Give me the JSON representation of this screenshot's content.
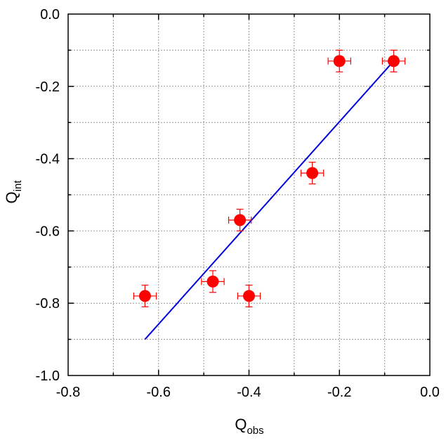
{
  "chart_data": {
    "type": "scatter",
    "xlabel": {
      "main": "Q",
      "sub": "obs"
    },
    "ylabel": {
      "main": "Q",
      "sub": "int"
    },
    "xlim": [
      -0.8,
      0.0
    ],
    "ylim": [
      -1.0,
      0.0
    ],
    "xticks": [
      "-0.8",
      "-0.6",
      "-0.4",
      "-0.2",
      "0.0"
    ],
    "yticks": [
      "0.0",
      "-0.2",
      "-0.4",
      "-0.6",
      "-0.8",
      "-1.0"
    ],
    "xtick_values": [
      -0.8,
      -0.6,
      -0.4,
      -0.2,
      0.0
    ],
    "ytick_values": [
      0.0,
      -0.2,
      -0.4,
      -0.6,
      -0.8,
      -1.0
    ],
    "grid": true,
    "points": [
      {
        "x": -0.63,
        "y": -0.78,
        "xerr": 0.025,
        "yerr": 0.03
      },
      {
        "x": -0.48,
        "y": -0.74,
        "xerr": 0.025,
        "yerr": 0.03
      },
      {
        "x": -0.42,
        "y": -0.57,
        "xerr": 0.025,
        "yerr": 0.03
      },
      {
        "x": -0.4,
        "y": -0.78,
        "xerr": 0.025,
        "yerr": 0.03
      },
      {
        "x": -0.26,
        "y": -0.44,
        "xerr": 0.025,
        "yerr": 0.03
      },
      {
        "x": -0.2,
        "y": -0.13,
        "xerr": 0.025,
        "yerr": 0.03
      },
      {
        "x": -0.08,
        "y": -0.13,
        "xerr": 0.025,
        "yerr": 0.03
      }
    ],
    "fit_line": {
      "x": [
        -0.63,
        -0.08
      ],
      "y": [
        -0.9,
        -0.13
      ]
    },
    "colors": {
      "points": "#ff0000",
      "errorbars": "#ff0000",
      "fit_line": "#0000dd",
      "grid": "#999999"
    }
  }
}
